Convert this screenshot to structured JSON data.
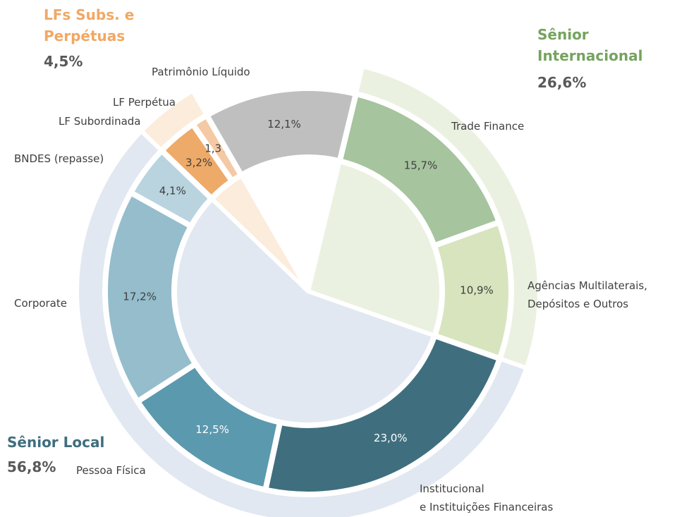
{
  "chart_data": {
    "type": "nested-donut",
    "groups": [
      {
        "name": "Sênior Internacional",
        "value": 26.6,
        "value_label": "26,6%",
        "color": "#ebf1e1",
        "text_color": "#76a35f",
        "segments": [
          {
            "name": "Trade Finance",
            "value": 15.7,
            "value_label": "15,7%",
            "color": "#a6c49e",
            "label_color": "#404040"
          },
          {
            "name": "Agências Multilaterais,\nDepósitos e Outros",
            "value": 10.9,
            "value_label": "10,9%",
            "color": "#d7e4be",
            "label_color": "#404040"
          }
        ]
      },
      {
        "name": "Sênior Local",
        "value": 56.8,
        "value_label": "56,8%",
        "color": "#e2e8f2",
        "text_color": "#3f6e7e",
        "segments": [
          {
            "name": "Institucional\ne Instituições Financeiras",
            "value": 23.0,
            "value_label": "23,0%",
            "color": "#3f6f7f",
            "label_color": "#ffffff"
          },
          {
            "name": "Pessoa Física",
            "value": 12.5,
            "value_label": "12,5%",
            "color": "#5b99ae",
            "label_color": "#ffffff"
          },
          {
            "name": "Corporate",
            "value": 17.2,
            "value_label": "17,2%",
            "color": "#95bdcc",
            "label_color": "#404040"
          },
          {
            "name": "BNDES (repasse)",
            "value": 4.1,
            "value_label": "4,1%",
            "color": "#b9d4df",
            "label_color": "#404040"
          }
        ]
      },
      {
        "name": "LFs Subs. e\nPerpétuas",
        "value": 4.5,
        "value_label": "4,5%",
        "color": "#fcecdc",
        "text_color": "#f0a865",
        "segments": [
          {
            "name": "LF Subordinada",
            "value": 3.2,
            "value_label": "3,2%",
            "color": "#eeaa68",
            "label_color": "#404040"
          },
          {
            "name": "LF Perpétua",
            "value": 1.3,
            "value_label": "1,3%",
            "color": "#f4c9a4",
            "label_color": "#404040"
          }
        ]
      },
      {
        "segments": [
          {
            "name": "Patrimônio Líquido",
            "value": 12.1,
            "value_label": "12,1%",
            "color": "#bfbfbf",
            "label_color": "#404040"
          }
        ]
      }
    ]
  }
}
